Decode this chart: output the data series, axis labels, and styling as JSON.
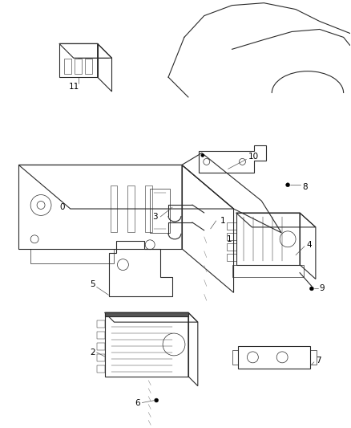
{
  "background_color": "#ffffff",
  "line_color": "#2a2a2a",
  "label_color": "#000000",
  "fig_width": 4.38,
  "fig_height": 5.33,
  "dpi": 100
}
